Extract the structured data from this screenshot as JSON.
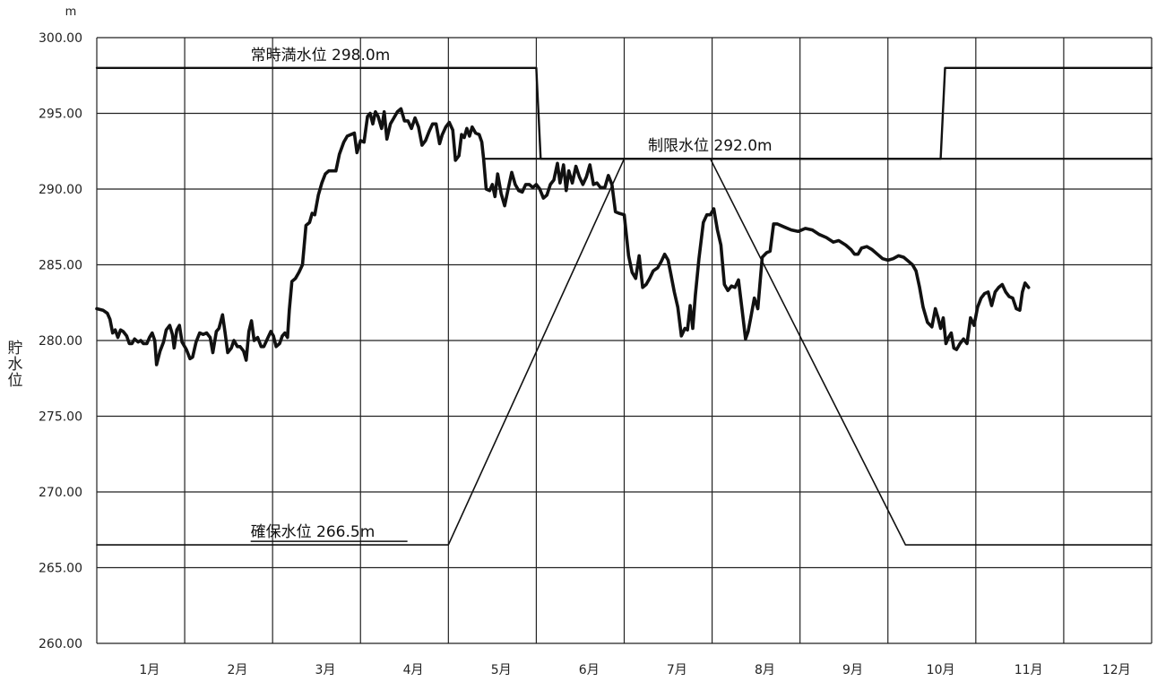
{
  "chart_data": {
    "type": "line",
    "title": "",
    "xlabel": "",
    "ylabel": "貯水位",
    "y_unit": "m",
    "ylim": [
      260,
      300
    ],
    "xlim": [
      0,
      12
    ],
    "grid": true,
    "yticks": [
      {
        "value": 300,
        "label": "300.00"
      },
      {
        "value": 295,
        "label": "295.00"
      },
      {
        "value": 290,
        "label": "290.00"
      },
      {
        "value": 285,
        "label": "285.00"
      },
      {
        "value": 280,
        "label": "280.00"
      },
      {
        "value": 275,
        "label": "275.00"
      },
      {
        "value": 270,
        "label": "270.00"
      },
      {
        "value": 265,
        "label": "265.00"
      },
      {
        "value": 260,
        "label": "260.00"
      }
    ],
    "categories": [
      "1月",
      "2月",
      "3月",
      "4月",
      "5月",
      "6月",
      "7月",
      "8月",
      "9月",
      "10月",
      "11月",
      "12月"
    ],
    "annotations": [
      {
        "text": "常時満水位 298.0m",
        "value": 298.0,
        "x": 1.75
      },
      {
        "text": "制限水位 292.0m",
        "value": 292.0,
        "x": 6.27
      },
      {
        "text": "確保水位 266.5m",
        "value": 266.5,
        "x": 1.75
      }
    ],
    "series": [
      {
        "role": "water_level",
        "points": [
          [
            0.0,
            282.1
          ],
          [
            0.07,
            282.0
          ],
          [
            0.12,
            281.8
          ],
          [
            0.15,
            281.4
          ],
          [
            0.18,
            280.5
          ],
          [
            0.21,
            280.7
          ],
          [
            0.24,
            280.2
          ],
          [
            0.27,
            280.7
          ],
          [
            0.3,
            280.6
          ],
          [
            0.34,
            280.3
          ],
          [
            0.37,
            279.8
          ],
          [
            0.4,
            279.8
          ],
          [
            0.43,
            280.1
          ],
          [
            0.47,
            279.9
          ],
          [
            0.5,
            280.0
          ],
          [
            0.53,
            279.8
          ],
          [
            0.57,
            279.8
          ],
          [
            0.6,
            280.2
          ],
          [
            0.63,
            280.5
          ],
          [
            0.66,
            280.0
          ],
          [
            0.68,
            278.4
          ],
          [
            0.72,
            279.3
          ],
          [
            0.76,
            279.9
          ],
          [
            0.79,
            280.7
          ],
          [
            0.83,
            281.0
          ],
          [
            0.86,
            280.4
          ],
          [
            0.88,
            279.5
          ],
          [
            0.91,
            280.7
          ],
          [
            0.94,
            281.0
          ],
          [
            0.97,
            279.9
          ],
          [
            1.02,
            279.4
          ],
          [
            1.06,
            278.8
          ],
          [
            1.09,
            278.9
          ],
          [
            1.13,
            279.9
          ],
          [
            1.17,
            280.5
          ],
          [
            1.21,
            280.4
          ],
          [
            1.25,
            280.5
          ],
          [
            1.29,
            280.2
          ],
          [
            1.32,
            279.2
          ],
          [
            1.36,
            280.6
          ],
          [
            1.39,
            280.8
          ],
          [
            1.43,
            281.7
          ],
          [
            1.46,
            280.5
          ],
          [
            1.49,
            279.2
          ],
          [
            1.53,
            279.5
          ],
          [
            1.56,
            280.0
          ],
          [
            1.6,
            279.6
          ],
          [
            1.63,
            279.6
          ],
          [
            1.67,
            279.3
          ],
          [
            1.7,
            278.7
          ],
          [
            1.73,
            280.6
          ],
          [
            1.76,
            281.3
          ],
          [
            1.79,
            280.0
          ],
          [
            1.83,
            280.2
          ],
          [
            1.87,
            279.6
          ],
          [
            1.9,
            279.6
          ],
          [
            1.94,
            280.1
          ],
          [
            1.98,
            280.6
          ],
          [
            2.01,
            280.3
          ],
          [
            2.04,
            279.6
          ],
          [
            2.08,
            279.8
          ],
          [
            2.11,
            280.3
          ],
          [
            2.14,
            280.5
          ],
          [
            2.17,
            280.2
          ],
          [
            2.19,
            282.0
          ],
          [
            2.22,
            283.9
          ],
          [
            2.26,
            284.1
          ],
          [
            2.3,
            284.5
          ],
          [
            2.34,
            285.0
          ],
          [
            2.38,
            287.6
          ],
          [
            2.42,
            287.8
          ],
          [
            2.45,
            288.4
          ],
          [
            2.48,
            288.3
          ],
          [
            2.52,
            289.6
          ],
          [
            2.56,
            290.4
          ],
          [
            2.6,
            291.0
          ],
          [
            2.64,
            291.2
          ],
          [
            2.68,
            291.2
          ],
          [
            2.72,
            291.2
          ],
          [
            2.76,
            292.3
          ],
          [
            2.81,
            293.1
          ],
          [
            2.85,
            293.5
          ],
          [
            2.89,
            293.6
          ],
          [
            2.93,
            293.7
          ],
          [
            2.96,
            292.4
          ],
          [
            3.0,
            293.2
          ],
          [
            3.04,
            293.1
          ],
          [
            3.08,
            294.8
          ],
          [
            3.11,
            295.0
          ],
          [
            3.14,
            294.3
          ],
          [
            3.17,
            295.1
          ],
          [
            3.2,
            294.8
          ],
          [
            3.24,
            294.0
          ],
          [
            3.27,
            295.1
          ],
          [
            3.3,
            293.3
          ],
          [
            3.34,
            294.3
          ],
          [
            3.38,
            294.7
          ],
          [
            3.42,
            295.1
          ],
          [
            3.46,
            295.3
          ],
          [
            3.5,
            294.5
          ],
          [
            3.54,
            294.5
          ],
          [
            3.58,
            294.0
          ],
          [
            3.62,
            294.7
          ],
          [
            3.66,
            294.1
          ],
          [
            3.7,
            292.9
          ],
          [
            3.74,
            293.2
          ],
          [
            3.78,
            293.8
          ],
          [
            3.82,
            294.3
          ],
          [
            3.86,
            294.3
          ],
          [
            3.9,
            293.0
          ],
          [
            3.93,
            293.6
          ],
          [
            3.97,
            294.1
          ],
          [
            4.01,
            294.4
          ],
          [
            4.05,
            293.9
          ],
          [
            4.08,
            291.9
          ],
          [
            4.12,
            292.2
          ],
          [
            4.15,
            293.6
          ],
          [
            4.18,
            293.4
          ],
          [
            4.21,
            294.0
          ],
          [
            4.24,
            293.5
          ],
          [
            4.27,
            294.1
          ],
          [
            4.31,
            293.7
          ],
          [
            4.35,
            293.6
          ],
          [
            4.38,
            293.1
          ],
          [
            4.4,
            292.0
          ],
          [
            4.43,
            290.0
          ],
          [
            4.47,
            289.9
          ],
          [
            4.5,
            290.3
          ],
          [
            4.53,
            289.5
          ],
          [
            4.56,
            291.0
          ],
          [
            4.6,
            289.7
          ],
          [
            4.64,
            288.9
          ],
          [
            4.68,
            290.0
          ],
          [
            4.72,
            291.1
          ],
          [
            4.76,
            290.3
          ],
          [
            4.8,
            289.9
          ],
          [
            4.84,
            289.8
          ],
          [
            4.88,
            290.3
          ],
          [
            4.92,
            290.3
          ],
          [
            4.96,
            290.1
          ],
          [
            5.0,
            290.3
          ],
          [
            5.04,
            290.0
          ],
          [
            5.08,
            289.4
          ],
          [
            5.12,
            289.6
          ],
          [
            5.16,
            290.3
          ],
          [
            5.2,
            290.6
          ],
          [
            5.24,
            291.7
          ],
          [
            5.27,
            290.4
          ],
          [
            5.31,
            291.6
          ],
          [
            5.34,
            289.9
          ],
          [
            5.37,
            291.2
          ],
          [
            5.41,
            290.4
          ],
          [
            5.45,
            291.5
          ],
          [
            5.49,
            290.8
          ],
          [
            5.53,
            290.3
          ],
          [
            5.57,
            290.8
          ],
          [
            5.61,
            291.6
          ],
          [
            5.65,
            290.3
          ],
          [
            5.69,
            290.4
          ],
          [
            5.73,
            290.1
          ],
          [
            5.78,
            290.1
          ],
          [
            5.82,
            290.9
          ],
          [
            5.86,
            290.3
          ],
          [
            5.9,
            288.5
          ],
          [
            5.94,
            288.4
          ],
          [
            6.0,
            288.3
          ],
          [
            6.05,
            285.6
          ],
          [
            6.09,
            284.5
          ],
          [
            6.13,
            284.1
          ],
          [
            6.17,
            285.6
          ],
          [
            6.21,
            283.5
          ],
          [
            6.25,
            283.7
          ],
          [
            6.29,
            284.1
          ],
          [
            6.33,
            284.6
          ],
          [
            6.38,
            284.8
          ],
          [
            6.42,
            285.2
          ],
          [
            6.46,
            285.7
          ],
          [
            6.5,
            285.3
          ],
          [
            6.53,
            284.4
          ],
          [
            6.57,
            283.2
          ],
          [
            6.61,
            282.2
          ],
          [
            6.65,
            280.3
          ],
          [
            6.69,
            280.8
          ],
          [
            6.72,
            280.7
          ],
          [
            6.75,
            282.3
          ],
          [
            6.78,
            280.8
          ],
          [
            6.81,
            283.0
          ],
          [
            6.85,
            285.4
          ],
          [
            6.9,
            287.8
          ],
          [
            6.94,
            288.3
          ],
          [
            6.98,
            288.3
          ],
          [
            7.02,
            288.7
          ],
          [
            7.06,
            287.3
          ],
          [
            7.1,
            286.3
          ],
          [
            7.14,
            283.7
          ],
          [
            7.18,
            283.3
          ],
          [
            7.22,
            283.6
          ],
          [
            7.26,
            283.5
          ],
          [
            7.3,
            284.0
          ],
          [
            7.34,
            282.1
          ],
          [
            7.38,
            280.1
          ],
          [
            7.41,
            280.6
          ],
          [
            7.44,
            281.5
          ],
          [
            7.48,
            282.8
          ],
          [
            7.52,
            282.1
          ],
          [
            7.57,
            285.5
          ],
          [
            7.62,
            285.8
          ],
          [
            7.66,
            285.9
          ],
          [
            7.7,
            287.7
          ],
          [
            7.74,
            287.7
          ],
          [
            7.82,
            287.5
          ],
          [
            7.9,
            287.3
          ],
          [
            7.98,
            287.2
          ],
          [
            8.06,
            287.4
          ],
          [
            8.14,
            287.3
          ],
          [
            8.22,
            287.0
          ],
          [
            8.3,
            286.8
          ],
          [
            8.38,
            286.5
          ],
          [
            8.44,
            286.6
          ],
          [
            8.52,
            286.3
          ],
          [
            8.58,
            286.0
          ],
          [
            8.62,
            285.7
          ],
          [
            8.66,
            285.7
          ],
          [
            8.7,
            286.1
          ],
          [
            8.76,
            286.2
          ],
          [
            8.82,
            286.0
          ],
          [
            8.88,
            285.7
          ],
          [
            8.94,
            285.4
          ],
          [
            9.0,
            285.3
          ],
          [
            9.06,
            285.4
          ],
          [
            9.12,
            285.6
          ],
          [
            9.18,
            285.5
          ],
          [
            9.24,
            285.2
          ],
          [
            9.28,
            285.0
          ],
          [
            9.32,
            284.6
          ],
          [
            9.36,
            283.5
          ],
          [
            9.4,
            282.2
          ],
          [
            9.45,
            281.2
          ],
          [
            9.5,
            280.9
          ],
          [
            9.54,
            282.1
          ],
          [
            9.57,
            281.5
          ],
          [
            9.6,
            280.8
          ],
          [
            9.63,
            281.5
          ],
          [
            9.66,
            279.8
          ],
          [
            9.69,
            280.2
          ],
          [
            9.72,
            280.5
          ],
          [
            9.75,
            279.5
          ],
          [
            9.78,
            279.4
          ],
          [
            9.82,
            279.8
          ],
          [
            9.86,
            280.1
          ],
          [
            9.9,
            279.8
          ],
          [
            9.94,
            281.5
          ],
          [
            9.98,
            281.0
          ],
          [
            10.02,
            282.2
          ],
          [
            10.06,
            282.8
          ],
          [
            10.1,
            283.1
          ],
          [
            10.14,
            283.2
          ],
          [
            10.18,
            282.3
          ],
          [
            10.22,
            283.2
          ],
          [
            10.26,
            283.5
          ],
          [
            10.3,
            283.7
          ],
          [
            10.34,
            283.2
          ],
          [
            10.38,
            282.9
          ],
          [
            10.42,
            282.8
          ],
          [
            10.46,
            282.1
          ],
          [
            10.5,
            282.0
          ],
          [
            10.53,
            283.2
          ],
          [
            10.56,
            283.8
          ],
          [
            10.6,
            283.5
          ]
        ]
      },
      {
        "role": "normal_full_level",
        "value": 298.0,
        "points": [
          [
            0.0,
            298.0
          ],
          [
            5.0,
            298.0
          ],
          [
            5.05,
            292.0
          ],
          [
            9.6,
            292.0
          ],
          [
            9.65,
            298.0
          ],
          [
            12.0,
            298.0
          ]
        ]
      },
      {
        "role": "restricted_level",
        "value": 292.0,
        "points": [
          [
            4.4,
            292.0
          ],
          [
            12.0,
            292.0
          ]
        ]
      },
      {
        "role": "secured_level",
        "value": 266.5,
        "points": [
          [
            0.0,
            266.5
          ],
          [
            4.0,
            266.5
          ],
          [
            6.0,
            292.0
          ],
          [
            6.98,
            292.0
          ],
          [
            9.2,
            266.5
          ],
          [
            12.0,
            266.5
          ]
        ]
      }
    ]
  }
}
